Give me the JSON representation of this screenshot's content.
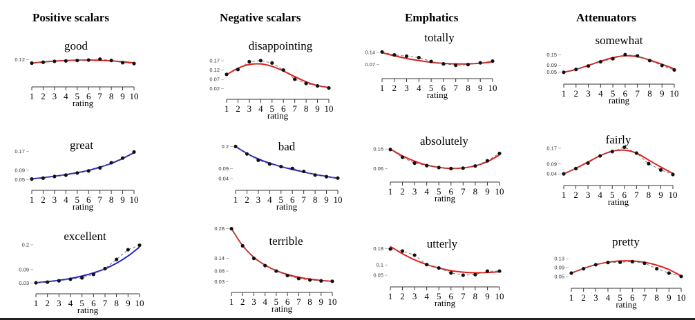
{
  "columns": [
    {
      "title": "Positive scalars",
      "panels": [
        "good",
        "great",
        "excellent"
      ]
    },
    {
      "title": "Negative scalars",
      "panels": [
        "disappointing",
        "bad",
        "terrible"
      ]
    },
    {
      "title": "Emphatics",
      "panels": [
        "totally",
        "absolutely",
        "utterly"
      ]
    },
    {
      "title": "Attenuators",
      "panels": [
        "somewhat",
        "fairly",
        "pretty"
      ]
    }
  ],
  "colors": {
    "fit_red": "#e0201b",
    "fit_blue": "#2323c8",
    "observed": "#111111",
    "dashed": "#777777"
  },
  "chart_data": [
    {
      "type": "line",
      "title": "good",
      "xlabel": "rating",
      "ylabel": "",
      "x": [
        1,
        2,
        3,
        4,
        5,
        6,
        7,
        8,
        9,
        10
      ],
      "yticks": [
        0.12
      ],
      "ylim": [
        0.08,
        0.13
      ],
      "xlim": [
        1,
        10
      ],
      "fit_color": "red",
      "series": [
        {
          "values": [
            0.112,
            0.114,
            0.116,
            0.117,
            0.118,
            0.119,
            0.121,
            0.118,
            0.113,
            0.111
          ]
        },
        {
          "values": [
            0.112,
            0.1145,
            0.1165,
            0.1178,
            0.1186,
            0.1188,
            0.1183,
            0.1171,
            0.1152,
            0.1127
          ]
        }
      ]
    },
    {
      "type": "line",
      "title": "great",
      "xlabel": "rating",
      "ylabel": "",
      "x": [
        1,
        2,
        3,
        4,
        5,
        6,
        7,
        8,
        9,
        10
      ],
      "yticks": [
        0.05,
        0.09,
        0.17
      ],
      "ylim": [
        0.045,
        0.175
      ],
      "xlim": [
        1,
        10
      ],
      "fit_color": "blue",
      "series": [
        {
          "values": [
            0.052,
            0.056,
            0.063,
            0.069,
            0.078,
            0.087,
            0.1,
            0.122,
            0.142,
            0.168
          ]
        },
        {
          "values": [
            0.053,
            0.058,
            0.064,
            0.071,
            0.079,
            0.089,
            0.103,
            0.119,
            0.14,
            0.165
          ]
        }
      ]
    },
    {
      "type": "line",
      "title": "excellent",
      "xlabel": "rating",
      "ylabel": "",
      "x": [
        1,
        2,
        3,
        4,
        5,
        6,
        7,
        8,
        9,
        10
      ],
      "yticks": [
        0.03,
        0.09,
        0.2
      ],
      "ylim": [
        0.025,
        0.215
      ],
      "xlim": [
        1,
        10
      ],
      "fit_color": "blue",
      "series": [
        {
          "values": [
            0.031,
            0.034,
            0.04,
            0.047,
            0.053,
            0.068,
            0.094,
            0.135,
            0.178,
            0.198
          ]
        },
        {
          "values": [
            0.031,
            0.036,
            0.042,
            0.05,
            0.061,
            0.075,
            0.093,
            0.118,
            0.15,
            0.19
          ]
        }
      ]
    },
    {
      "type": "line",
      "title": "disappointing",
      "xlabel": "rating",
      "ylabel": "",
      "x": [
        1,
        2,
        3,
        4,
        5,
        6,
        7,
        8,
        9,
        10
      ],
      "yticks": [
        0.02,
        0.07,
        0.12,
        0.17
      ],
      "ylim": [
        0.015,
        0.185
      ],
      "xlim": [
        1,
        10
      ],
      "fit_color": "red",
      "series": [
        {
          "values": [
            0.097,
            0.123,
            0.165,
            0.171,
            0.158,
            0.12,
            0.071,
            0.048,
            0.035,
            0.024
          ]
        },
        {
          "values": [
            0.095,
            0.13,
            0.15,
            0.153,
            0.14,
            0.115,
            0.085,
            0.057,
            0.037,
            0.026
          ]
        }
      ]
    },
    {
      "type": "line",
      "title": "bad",
      "xlabel": "rating",
      "ylabel": "",
      "x": [
        1,
        2,
        3,
        4,
        5,
        6,
        7,
        8,
        9,
        10
      ],
      "yticks": [
        0.04,
        0.09,
        0.2
      ],
      "ylim": [
        0.03,
        0.215
      ],
      "xlim": [
        1,
        10
      ],
      "fit_color": "blue",
      "series": [
        {
          "values": [
            0.2,
            0.163,
            0.132,
            0.113,
            0.1,
            0.091,
            0.076,
            0.058,
            0.05,
            0.043
          ]
        },
        {
          "values": [
            0.2,
            0.165,
            0.138,
            0.117,
            0.1,
            0.086,
            0.073,
            0.061,
            0.051,
            0.042
          ]
        }
      ]
    },
    {
      "type": "line",
      "title": "terrible",
      "xlabel": "rating",
      "ylabel": "",
      "x": [
        1,
        2,
        3,
        4,
        5,
        6,
        7,
        8,
        9,
        10
      ],
      "yticks": [
        0.03,
        0.08,
        0.14,
        0.28
      ],
      "ylim": [
        0.025,
        0.285
      ],
      "xlim": [
        1,
        10
      ],
      "fit_color": "red",
      "series": [
        {
          "values": [
            0.28,
            0.199,
            0.14,
            0.106,
            0.08,
            0.059,
            0.045,
            0.038,
            0.034,
            0.032
          ]
        },
        {
          "values": [
            0.28,
            0.2,
            0.145,
            0.108,
            0.082,
            0.064,
            0.051,
            0.042,
            0.036,
            0.032
          ]
        }
      ]
    },
    {
      "type": "line",
      "title": "totally",
      "xlabel": "rating",
      "ylabel": "",
      "x": [
        1,
        2,
        3,
        4,
        5,
        6,
        7,
        8,
        9,
        10
      ],
      "yticks": [
        0.07,
        0.14
      ],
      "ylim": [
        0.045,
        0.155
      ],
      "xlim": [
        1,
        10
      ],
      "fit_color": "red",
      "series": [
        {
          "values": [
            0.142,
            0.125,
            0.118,
            0.11,
            0.088,
            0.074,
            0.066,
            0.07,
            0.08,
            0.09
          ]
        },
        {
          "values": [
            0.138,
            0.12,
            0.105,
            0.093,
            0.083,
            0.077,
            0.074,
            0.074,
            0.078,
            0.086
          ]
        }
      ]
    },
    {
      "type": "line",
      "title": "absolutely",
      "xlabel": "rating",
      "ylabel": "",
      "x": [
        1,
        2,
        3,
        4,
        5,
        6,
        7,
        8,
        9,
        10
      ],
      "yticks": [
        0.06,
        0.16
      ],
      "ylim": [
        0.04,
        0.175
      ],
      "xlim": [
        1,
        10
      ],
      "fit_color": "red",
      "series": [
        {
          "values": [
            0.158,
            0.118,
            0.088,
            0.075,
            0.065,
            0.06,
            0.062,
            0.073,
            0.1,
            0.138
          ]
        },
        {
          "values": [
            0.16,
            0.125,
            0.098,
            0.078,
            0.066,
            0.06,
            0.063,
            0.074,
            0.095,
            0.13
          ]
        }
      ]
    },
    {
      "type": "line",
      "title": "utterly",
      "xlabel": "rating",
      "ylabel": "",
      "x": [
        1,
        2,
        3,
        4,
        5,
        6,
        7,
        8,
        9,
        10
      ],
      "yticks": [
        0.05,
        0.1,
        0.18
      ],
      "ylim": [
        0.04,
        0.195
      ],
      "xlim": [
        1,
        10
      ],
      "fit_color": "red",
      "series": [
        {
          "values": [
            0.178,
            0.168,
            0.148,
            0.102,
            0.085,
            0.061,
            0.05,
            0.053,
            0.07,
            0.07
          ]
        },
        {
          "values": [
            0.19,
            0.155,
            0.125,
            0.102,
            0.085,
            0.072,
            0.065,
            0.062,
            0.063,
            0.067
          ]
        }
      ]
    },
    {
      "type": "line",
      "title": "somewhat",
      "xlabel": "rating",
      "ylabel": "",
      "x": [
        1,
        2,
        3,
        4,
        5,
        6,
        7,
        8,
        9,
        10
      ],
      "yticks": [
        0.05,
        0.09,
        0.15
      ],
      "ylim": [
        0.035,
        0.165
      ],
      "xlim": [
        1,
        10
      ],
      "fit_color": "red",
      "series": [
        {
          "values": [
            0.048,
            0.065,
            0.085,
            0.11,
            0.128,
            0.152,
            0.145,
            0.117,
            0.088,
            0.062
          ]
        },
        {
          "values": [
            0.048,
            0.065,
            0.088,
            0.113,
            0.134,
            0.145,
            0.14,
            0.12,
            0.095,
            0.068
          ]
        }
      ]
    },
    {
      "type": "line",
      "title": "fairly",
      "xlabel": "rating",
      "ylabel": "",
      "x": [
        1,
        2,
        3,
        4,
        5,
        6,
        7,
        8,
        9,
        10
      ],
      "yticks": [
        0.04,
        0.09,
        0.17
      ],
      "ylim": [
        0.03,
        0.18
      ],
      "xlim": [
        1,
        10
      ],
      "fit_color": "red",
      "series": [
        {
          "values": [
            0.04,
            0.067,
            0.095,
            0.131,
            0.153,
            0.175,
            0.145,
            0.092,
            0.06,
            0.037
          ]
        },
        {
          "values": [
            0.04,
            0.068,
            0.1,
            0.132,
            0.155,
            0.16,
            0.145,
            0.11,
            0.075,
            0.042
          ]
        }
      ]
    },
    {
      "type": "line",
      "title": "pretty",
      "xlabel": "rating",
      "ylabel": "",
      "x": [
        1,
        2,
        3,
        4,
        5,
        6,
        7,
        8,
        9,
        10
      ],
      "yticks": [
        0.05,
        0.09,
        0.13
      ],
      "ylim": [
        0.04,
        0.14
      ],
      "xlim": [
        1,
        10
      ],
      "fit_color": "red",
      "series": [
        {
          "values": [
            0.065,
            0.085,
            0.103,
            0.113,
            0.114,
            0.117,
            0.11,
            0.085,
            0.065,
            0.05
          ]
        },
        {
          "values": [
            0.065,
            0.086,
            0.103,
            0.114,
            0.12,
            0.12,
            0.114,
            0.101,
            0.081,
            0.052
          ]
        }
      ]
    }
  ]
}
